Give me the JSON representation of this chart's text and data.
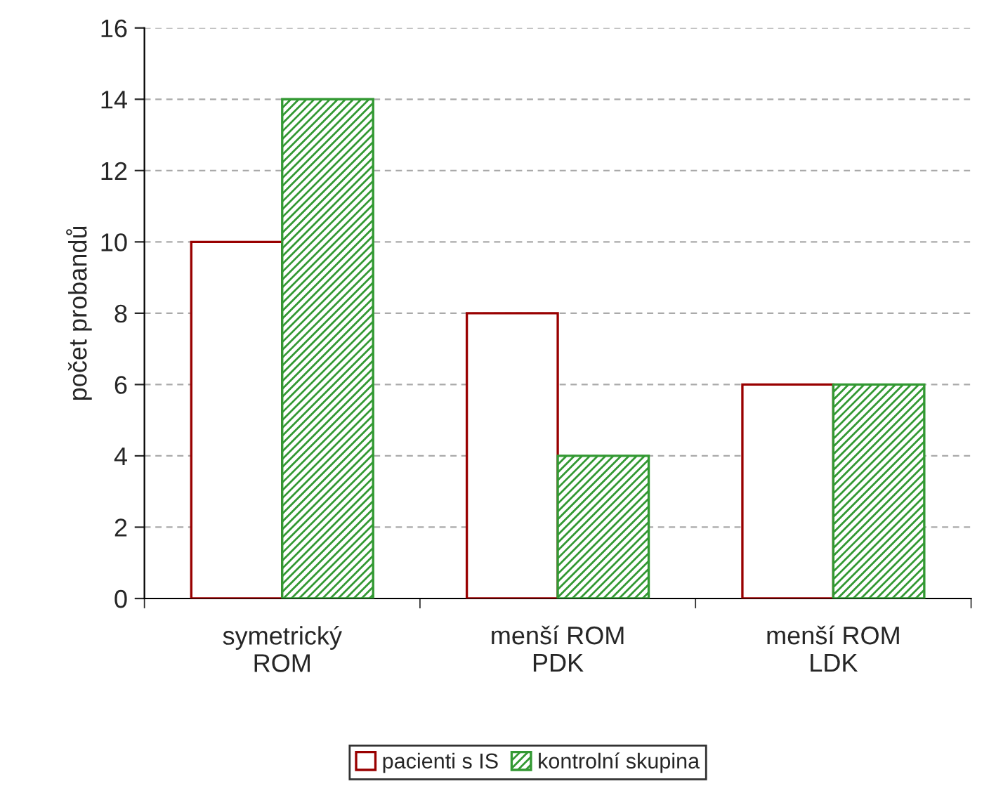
{
  "chart_data": {
    "type": "bar",
    "ylabel": "počet probandů",
    "categories": [
      "symetrický\nROM",
      "menší ROM\nPDK",
      "menší ROM\nLDK"
    ],
    "series": [
      {
        "name": "pacienti s IS",
        "color": "#990000",
        "values": [
          10,
          8,
          6
        ]
      },
      {
        "name": "kontrolní skupina",
        "color": "#339933",
        "values": [
          14,
          4,
          6
        ]
      }
    ],
    "ylim": [
      0,
      16
    ],
    "yticks": [
      0,
      2,
      4,
      6,
      8,
      10,
      12,
      14,
      16
    ],
    "grid": "y",
    "legend": "bottom"
  }
}
